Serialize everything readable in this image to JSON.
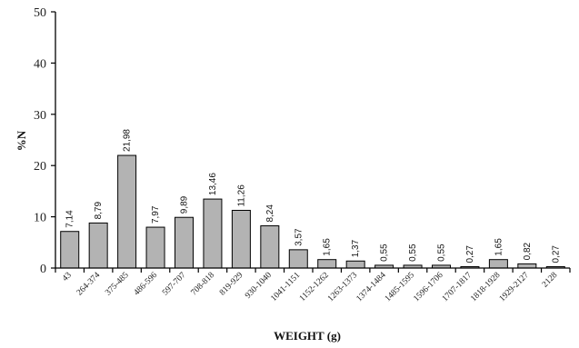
{
  "chart_data": {
    "type": "bar",
    "title": "",
    "xlabel": "WEIGHT (g)",
    "ylabel": "%N",
    "ylim": [
      0,
      50
    ],
    "yticks": [
      0,
      10,
      20,
      30,
      40,
      50
    ],
    "grid": false,
    "categories": [
      "43",
      "264-374",
      "375-485",
      "486-596",
      "597-707",
      "708-818",
      "819-929",
      "930-1040",
      "1041-1151",
      "1152-1262",
      "1263-1373",
      "1374-1484",
      "1485-1595",
      "1596-1706",
      "1707-1817",
      "1818-1928",
      "1929-2127",
      "2128"
    ],
    "values": [
      7.14,
      8.79,
      21.98,
      7.97,
      9.89,
      13.46,
      11.26,
      8.24,
      3.57,
      1.65,
      1.37,
      0.55,
      0.55,
      0.55,
      0.27,
      1.65,
      0.82,
      0.27
    ],
    "value_labels": [
      "7,14",
      "8,79",
      "21,98",
      "7,97",
      "9,89",
      "13,46",
      "11,26",
      "8,24",
      "3,57",
      "1,65",
      "1,37",
      "0,55",
      "0,55",
      "0,55",
      "0,27",
      "1,65",
      "0,82",
      "0,27"
    ],
    "category_labels": [
      "43",
      "264-374",
      "375-485",
      "486-596",
      "597-707",
      "708-818",
      "819-929",
      "930-1040",
      "1041-1151",
      "1152-1262",
      "1263-1373",
      "1374-1484",
      "1485-1595",
      "1596-1706",
      "1707-1817",
      "1818-1928",
      "1929-2127",
      "2128"
    ],
    "bar_color": "#b3b3b3",
    "bar_edge_color": "#000000"
  }
}
